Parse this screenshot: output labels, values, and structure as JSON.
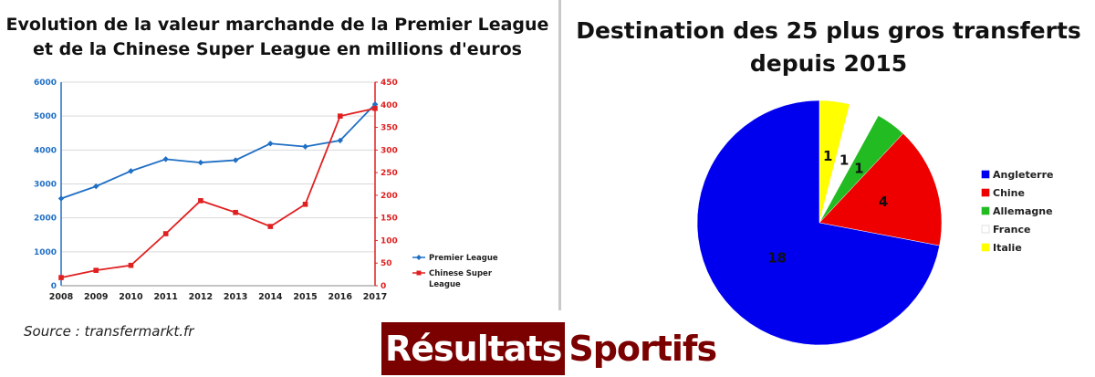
{
  "left": {
    "title_line1": "Evolution de la valeur marchande de la Premier League",
    "title_line2": "et de la Chinese Super League en millions d'euros",
    "source": "Source : transfermarkt.fr"
  },
  "right": {
    "title_line1": "Destination des 25 plus gros transferts",
    "title_line2": "depuis 2015"
  },
  "brand": {
    "part1": "Résultats",
    "part2": "Sportifs"
  },
  "chart_data": [
    {
      "type": "line",
      "title": "Evolution de la valeur marchande de la Premier League et de la Chinese Super League en millions d'euros",
      "x": [
        "2008",
        "2009",
        "2010",
        "2011",
        "2012",
        "2013",
        "2014",
        "2015",
        "2016",
        "2017"
      ],
      "y_left_ticks": [
        "0",
        "1000",
        "2000",
        "3000",
        "4000",
        "5000",
        "6000"
      ],
      "y_right_ticks": [
        "0",
        "50",
        "100",
        "150",
        "200",
        "250",
        "300",
        "350",
        "400",
        "450"
      ],
      "ylim_left": [
        0,
        6000
      ],
      "ylim_right": [
        0,
        450
      ],
      "grid": true,
      "legend_position": "right",
      "series": [
        {
          "name": "Premier League",
          "axis": "left",
          "color": "#1f6fc5",
          "marker": "diamond",
          "values": [
            2570,
            2930,
            3380,
            3730,
            3630,
            3700,
            4190,
            4100,
            4280,
            5350
          ]
        },
        {
          "name": "Chinese Super League",
          "axis": "right",
          "color": "#e02020",
          "marker": "square",
          "values": [
            18,
            34,
            45,
            115,
            188,
            162,
            131,
            180,
            375,
            392
          ]
        }
      ]
    },
    {
      "type": "pie",
      "title": "Destination des 25 plus gros transferts depuis 2015",
      "legend_position": "right",
      "slices": [
        {
          "label": "Angleterre",
          "value": 18,
          "color": "#0000ee"
        },
        {
          "label": "Chine",
          "value": 4,
          "color": "#ee0000"
        },
        {
          "label": "Allemagne",
          "value": 1,
          "color": "#22bb22"
        },
        {
          "label": "France",
          "value": 1,
          "color": "#ffffff"
        },
        {
          "label": "Italie",
          "value": 1,
          "color": "#ffff00"
        }
      ]
    }
  ]
}
